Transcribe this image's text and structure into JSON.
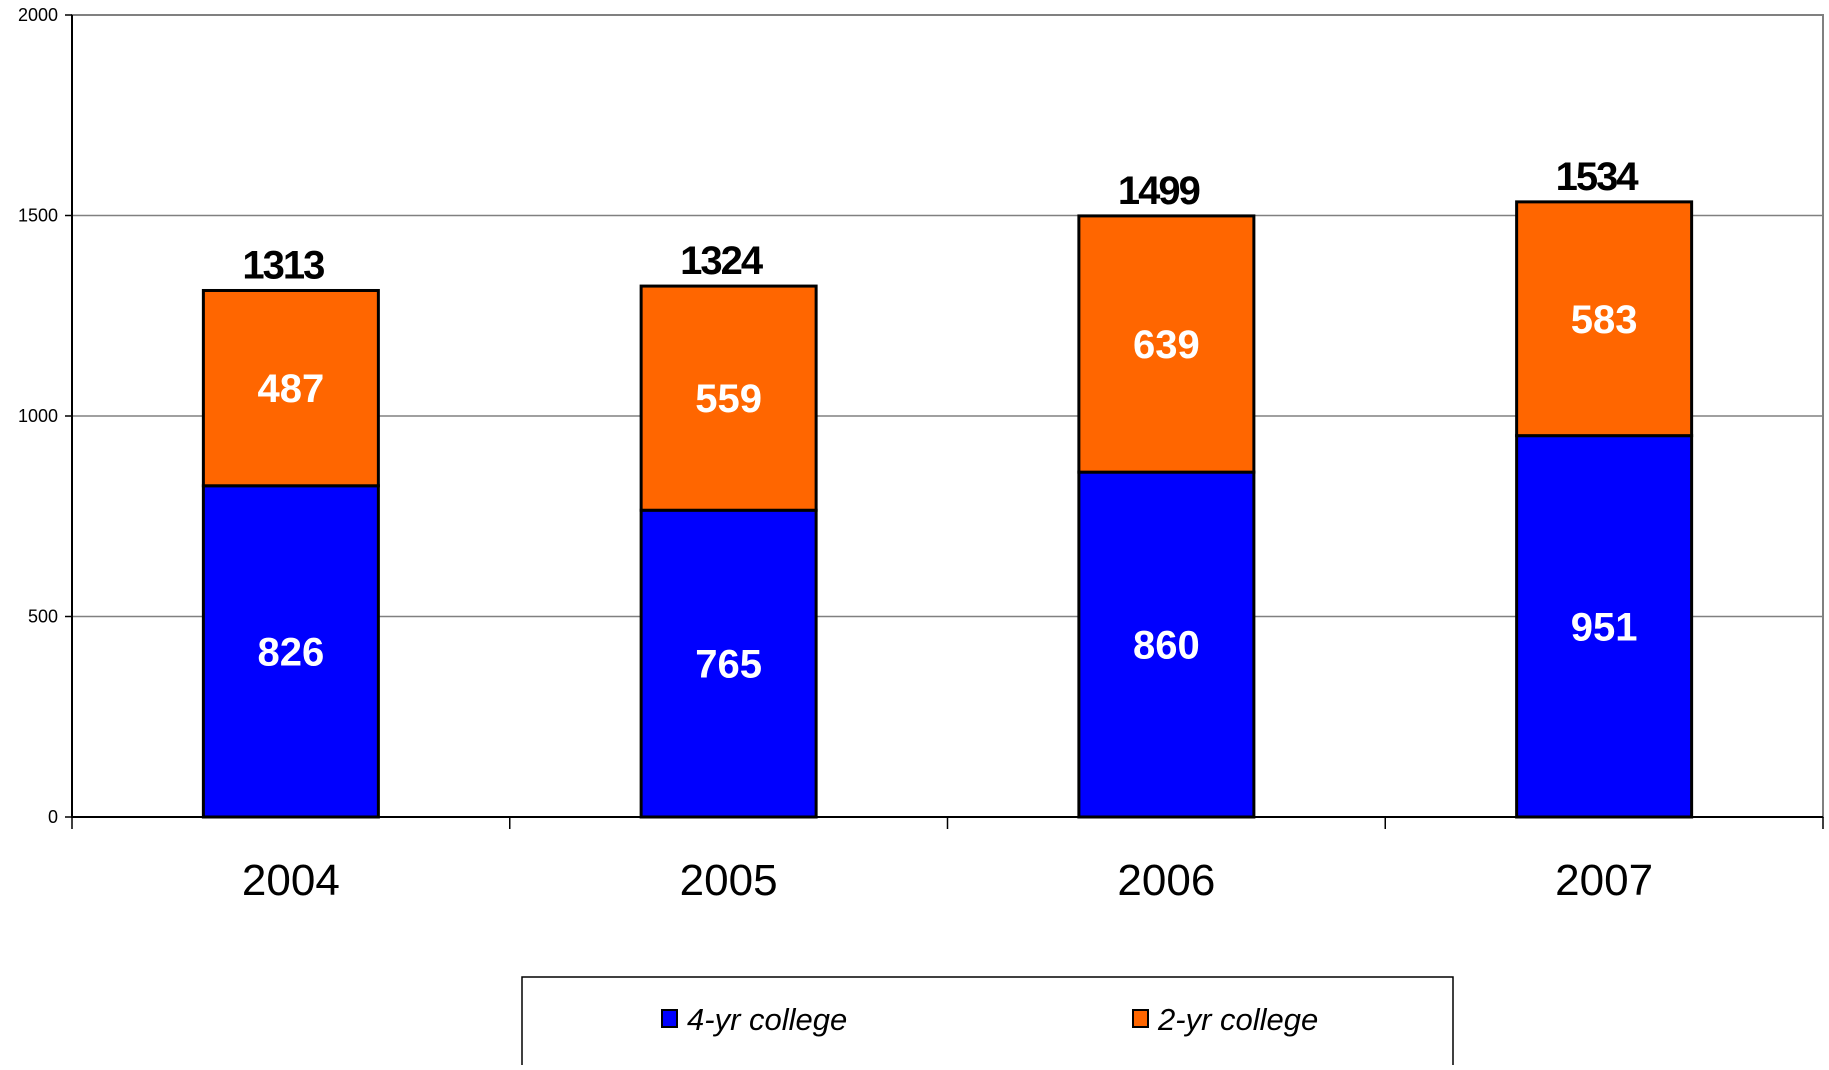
{
  "chart_data": {
    "type": "bar",
    "stacked": true,
    "title": "",
    "xlabel": "",
    "ylabel": "",
    "ylim": [
      0,
      2000
    ],
    "yticks": [
      0,
      500,
      1000,
      1500,
      2000
    ],
    "grid": true,
    "legend_position": "bottom",
    "categories": [
      "2004",
      "2005",
      "2006",
      "2007"
    ],
    "series": [
      {
        "name": "4-yr college",
        "values": [
          826,
          765,
          860,
          951
        ],
        "color": "#0000FF"
      },
      {
        "name": "2-yr college",
        "values": [
          487,
          559,
          639,
          583
        ],
        "color": "#FF6600"
      }
    ],
    "totals": [
      1313,
      1324,
      1499,
      1534
    ]
  }
}
